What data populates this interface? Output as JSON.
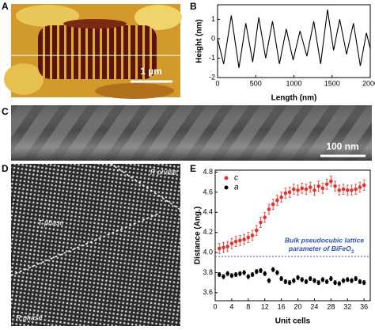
{
  "panels": {
    "A": {
      "label": "A",
      "scale_bar": "1 µm"
    },
    "B": {
      "label": "B"
    },
    "C": {
      "label": "C",
      "scale_bar": "100 nm"
    },
    "D": {
      "label": "D",
      "phases": [
        "R phase",
        "T phase",
        "R phase"
      ]
    },
    "E": {
      "label": "E"
    }
  },
  "chart_data": [
    {
      "type": "line",
      "x_label": "Length (nm)",
      "y_label": "Height (nm)",
      "color": "#000000",
      "x": [
        0,
        80,
        180,
        280,
        370,
        460,
        540,
        630,
        720,
        810,
        900,
        990,
        1080,
        1170,
        1260,
        1350,
        1440,
        1520,
        1600,
        1690,
        1780,
        1870,
        1950,
        2000
      ],
      "values": [
        0,
        -1.3,
        1.2,
        -1.5,
        0.8,
        -1.2,
        1.1,
        -1.0,
        0.9,
        -1.3,
        0.5,
        -1.1,
        0.4,
        -0.9,
        0.9,
        -1.3,
        1.5,
        -0.6,
        1.0,
        -0.8,
        0.8,
        -1.4,
        0.3,
        -0.5
      ],
      "xlim": [
        0,
        2000
      ],
      "ylim": [
        -2,
        1.75
      ],
      "xticks": [
        0,
        500,
        1000,
        1500,
        2000
      ],
      "yticks": [
        -2,
        -1,
        0,
        1
      ]
    },
    {
      "type": "scatter",
      "x_label": "Unit cells",
      "y_label": "Distance (Ang.)",
      "x": [
        1,
        2,
        3,
        4,
        5,
        6,
        7,
        8,
        9,
        10,
        11,
        12,
        13,
        14,
        15,
        16,
        17,
        18,
        19,
        20,
        21,
        22,
        23,
        24,
        25,
        26,
        27,
        28,
        29,
        30,
        31,
        32,
        33,
        34,
        35,
        36
      ],
      "series": [
        {
          "name": "c",
          "color": "#e8302a",
          "error": 0.05,
          "values": [
            4.04,
            4.05,
            4.06,
            4.09,
            4.11,
            4.12,
            4.13,
            4.15,
            4.17,
            4.22,
            4.3,
            4.35,
            4.43,
            4.48,
            4.52,
            4.55,
            4.59,
            4.6,
            4.63,
            4.62,
            4.64,
            4.63,
            4.65,
            4.62,
            4.66,
            4.64,
            4.68,
            4.71,
            4.66,
            4.62,
            4.63,
            4.62,
            4.62,
            4.63,
            4.65,
            4.67
          ]
        },
        {
          "name": "a",
          "color": "#000000",
          "error": 0.02,
          "values": [
            3.78,
            3.76,
            3.79,
            3.77,
            3.78,
            3.79,
            3.8,
            3.76,
            3.78,
            3.81,
            3.82,
            3.79,
            3.72,
            3.83,
            3.8,
            3.74,
            3.71,
            3.7,
            3.72,
            3.75,
            3.73,
            3.71,
            3.74,
            3.72,
            3.7,
            3.73,
            3.71,
            3.74,
            3.7,
            3.69,
            3.72,
            3.73,
            3.72,
            3.74,
            3.71,
            3.7
          ]
        }
      ],
      "reference_line": 3.96,
      "annotation": [
        "Bulk pseudocubic lattice",
        "parameter of BiFeO"
      ],
      "annotation_subscript": "3",
      "xlim": [
        0,
        37.5
      ],
      "ylim": [
        3.52,
        4.82
      ],
      "xticks": [
        0,
        4,
        8,
        12,
        16,
        20,
        24,
        28,
        32,
        36
      ],
      "yticks": [
        3.6,
        3.8,
        {
          "value": 4,
          "label": "4.0"
        },
        4.2,
        4.4,
        4.6,
        4.8
      ],
      "legend": "top-left"
    }
  ]
}
